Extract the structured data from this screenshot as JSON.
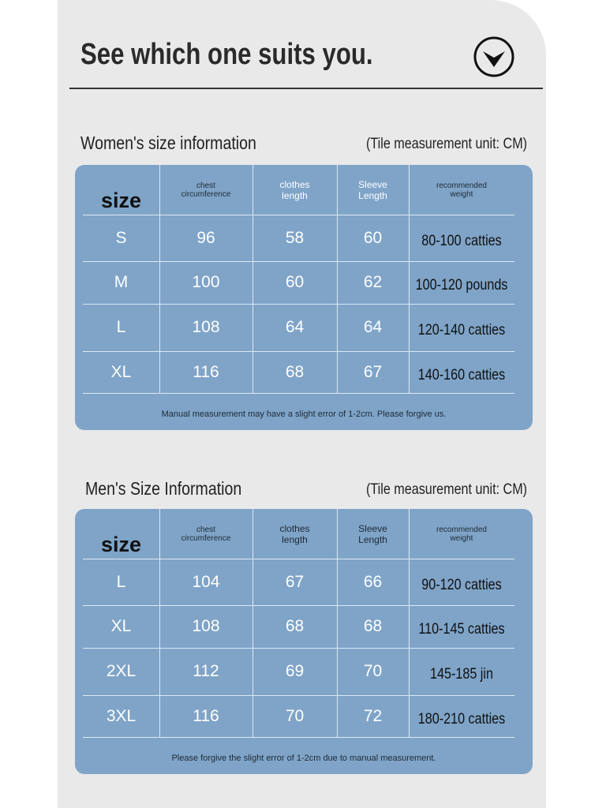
{
  "header": {
    "title": "See which one suits you."
  },
  "sections": [
    {
      "title": "Women's size information",
      "unit": "(Tile measurement unit: CM)",
      "columns": [
        "size",
        "chest circumference",
        "clothes length",
        "Sleeve Length",
        "recommended weight"
      ],
      "rows": [
        [
          "S",
          "96",
          "58",
          "60",
          "80-100 catties"
        ],
        [
          "M",
          "100",
          "60",
          "62",
          "100-120 pounds"
        ],
        [
          "L",
          "108",
          "64",
          "64",
          "120-140 catties"
        ],
        [
          "XL",
          "116",
          "68",
          "67",
          "140-160 catties"
        ]
      ],
      "note": "Manual measurement may have a slight error of 1-2cm. Please forgive us."
    },
    {
      "title": "Men's Size Information",
      "unit": "(Tile measurement unit: CM)",
      "columns": [
        "size",
        "chest circumference",
        "clothes length",
        "Sleeve Length",
        "recommended weight"
      ],
      "rows": [
        [
          "L",
          "104",
          "67",
          "66",
          "90-120 catties"
        ],
        [
          "XL",
          "108",
          "68",
          "68",
          "110-145 catties"
        ],
        [
          "2XL",
          "112",
          "69",
          "70",
          "145-185 jin"
        ],
        [
          "3XL",
          "116",
          "70",
          "72",
          "180-210 catties"
        ]
      ],
      "note": "Please forgive the slight error of 1-2cm due to manual measurement."
    }
  ]
}
